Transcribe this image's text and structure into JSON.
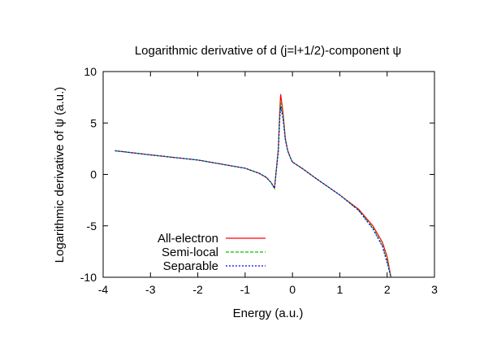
{
  "chart_data": {
    "type": "line",
    "title": "Logarithmic derivative of d (j=l+1/2)-component ψ",
    "xlabel": "Energy (a.u.)",
    "ylabel": "Logarithmic derivative of ψ (a.u.)",
    "xlim": [
      -4,
      3
    ],
    "ylim": [
      -10,
      10
    ],
    "xticks": [
      -4,
      -3,
      -2,
      -1,
      0,
      1,
      2,
      3
    ],
    "yticks": [
      -10,
      -5,
      0,
      5,
      10
    ],
    "xtick_labels": [
      "-4",
      "-3",
      "-2",
      "-1",
      "0",
      "1",
      "2",
      "3"
    ],
    "ytick_labels": [
      "-10",
      "-5",
      "0",
      "5",
      "10"
    ],
    "grid": false,
    "legend_position": "bottom-left",
    "series": [
      {
        "name": "All-electron",
        "color": "#ff0000",
        "dash": "solid",
        "x": [
          -3.75,
          -3.0,
          -2.0,
          -1.0,
          -0.7,
          -0.55,
          -0.45,
          -0.38,
          -0.3,
          -0.27,
          -0.25,
          -0.2,
          -0.15,
          -0.1,
          -0.05,
          0.0,
          0.2,
          0.5,
          1.0,
          1.4,
          1.7,
          1.9,
          2.0,
          2.08
        ],
        "y": [
          2.3,
          1.9,
          1.4,
          0.6,
          0.1,
          -0.3,
          -0.8,
          -1.35,
          2.5,
          6.0,
          7.8,
          6.0,
          3.5,
          2.3,
          1.7,
          1.2,
          0.6,
          -0.4,
          -2.0,
          -3.4,
          -5.0,
          -6.6,
          -8.0,
          -10.0
        ]
      },
      {
        "name": "Semi-local",
        "color": "#00c000",
        "dash": "dashed",
        "x": [
          -3.75,
          -3.0,
          -2.0,
          -1.0,
          -0.7,
          -0.55,
          -0.45,
          -0.38,
          -0.3,
          -0.27,
          -0.25,
          -0.2,
          -0.15,
          -0.1,
          -0.05,
          0.0,
          0.2,
          0.5,
          1.0,
          1.4,
          1.7,
          1.9,
          2.0,
          2.08
        ],
        "y": [
          2.3,
          1.9,
          1.4,
          0.6,
          0.1,
          -0.3,
          -0.8,
          -1.35,
          2.3,
          5.6,
          7.0,
          5.6,
          3.4,
          2.3,
          1.7,
          1.2,
          0.6,
          -0.4,
          -2.0,
          -3.5,
          -5.2,
          -6.9,
          -8.4,
          -10.0
        ]
      },
      {
        "name": "Separable",
        "color": "#0000ff",
        "dash": "dotted",
        "x": [
          -3.75,
          -3.0,
          -2.0,
          -1.0,
          -0.7,
          -0.55,
          -0.45,
          -0.38,
          -0.3,
          -0.27,
          -0.25,
          -0.2,
          -0.15,
          -0.1,
          -0.05,
          0.0,
          0.2,
          0.5,
          1.0,
          1.4,
          1.7,
          1.9,
          2.0,
          2.08
        ],
        "y": [
          2.3,
          1.9,
          1.4,
          0.6,
          0.1,
          -0.3,
          -0.8,
          -1.35,
          2.2,
          5.3,
          6.6,
          5.4,
          3.3,
          2.3,
          1.7,
          1.2,
          0.6,
          -0.4,
          -2.0,
          -3.5,
          -5.3,
          -7.0,
          -8.6,
          -10.0
        ]
      }
    ]
  }
}
